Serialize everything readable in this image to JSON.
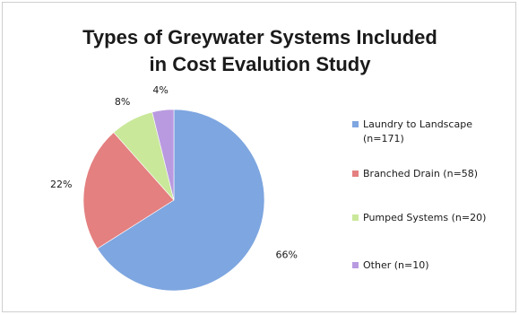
{
  "chart_data": {
    "type": "pie",
    "title": [
      "Types of Greywater Systems Included",
      "in Cost Evalution Study"
    ],
    "legend_position": "right",
    "slices": [
      {
        "label": "Laundry to Landscape\n(n=171)",
        "percent_label": "66%",
        "value": 171,
        "color": "#7ea6e0"
      },
      {
        "label": "Branched Drain (n=58)",
        "percent_label": "22%",
        "value": 58,
        "color": "#e48080"
      },
      {
        "label": "Pumped Systems (n=20)",
        "percent_label": "8%",
        "value": 20,
        "color": "#c9e89a"
      },
      {
        "label": "Other (n=10)",
        "percent_label": "4%",
        "value": 10,
        "color": "#b99ae0"
      }
    ]
  }
}
